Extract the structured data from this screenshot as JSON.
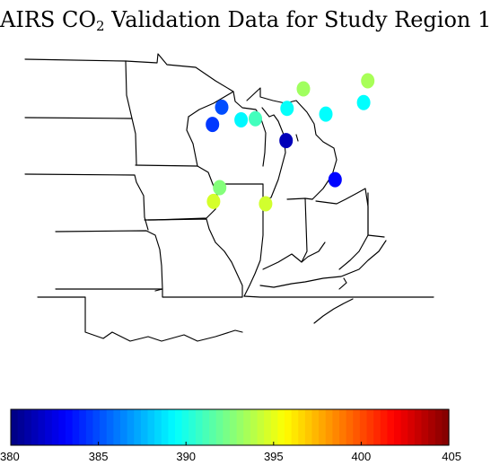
{
  "title": {
    "main": "AIRS CO",
    "sub": "2",
    "rest": " Validation Data for Study Region 1"
  },
  "colorbar": {
    "min": 380,
    "max": 405,
    "ticks": [
      "380",
      "385",
      "390",
      "395",
      "400",
      "405"
    ],
    "colormap": "jet"
  },
  "chart_data": {
    "type": "scatter",
    "value_range": [
      380,
      405
    ],
    "points": [
      {
        "lon": -82.3,
        "lat": 47.3,
        "value": 393.5
      },
      {
        "lon": -88.6,
        "lat": 46.6,
        "value": 393.3
      },
      {
        "lon": -96.6,
        "lat": 45.0,
        "value": 385.0
      },
      {
        "lon": -90.2,
        "lat": 44.9,
        "value": 389.5
      },
      {
        "lon": -86.4,
        "lat": 44.4,
        "value": 389.4
      },
      {
        "lon": -82.7,
        "lat": 45.4,
        "value": 389.4
      },
      {
        "lon": -93.3,
        "lat": 44.0,
        "value": 391.0
      },
      {
        "lon": -94.7,
        "lat": 43.9,
        "value": 389.2
      },
      {
        "lon": -97.5,
        "lat": 43.5,
        "value": 384.5
      },
      {
        "lon": -90.3,
        "lat": 42.1,
        "value": 381.4
      },
      {
        "lon": -85.5,
        "lat": 38.7,
        "value": 383.2
      },
      {
        "lon": -96.8,
        "lat": 38.0,
        "value": 392.6
      },
      {
        "lon": -97.4,
        "lat": 36.8,
        "value": 394.6
      },
      {
        "lon": -92.3,
        "lat": 36.6,
        "value": 394.5
      }
    ]
  }
}
